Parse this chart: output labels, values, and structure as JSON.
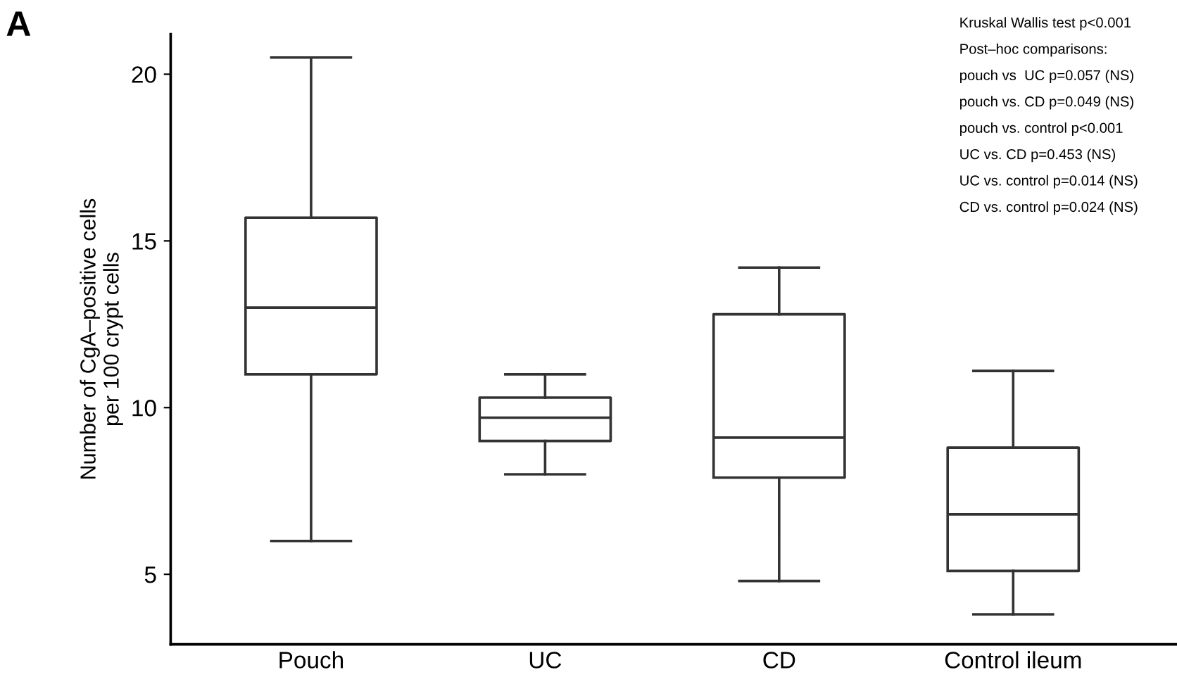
{
  "chart_data": {
    "type": "box",
    "title": "A",
    "ylabel": "Number of CgA–positive cells\nper 100 crypt cells",
    "categories": [
      "Pouch",
      "UC",
      "CD",
      "Control ileum"
    ],
    "boxes": [
      {
        "low": 6.0,
        "q1": 11.0,
        "median": 13.0,
        "q3": 15.7,
        "high": 20.5
      },
      {
        "low": 8.0,
        "q1": 9.0,
        "median": 9.7,
        "q3": 10.3,
        "high": 11.0
      },
      {
        "low": 4.8,
        "q1": 7.9,
        "median": 9.1,
        "q3": 12.8,
        "high": 14.2
      },
      {
        "low": 3.8,
        "q1": 5.1,
        "median": 6.8,
        "q3": 8.8,
        "high": 11.1
      }
    ],
    "ylim": [
      2.9,
      21.2
    ],
    "yticks": [
      5,
      10,
      15,
      20
    ],
    "grid": false,
    "annotations": [
      "Kruskal Wallis test p<0.001",
      "Post–hoc comparisons:",
      "pouch vs  UC p=0.057 (NS)",
      "pouch vs. CD p=0.049 (NS)",
      "pouch vs. control p<0.001",
      "UC vs. CD p=0.453 (NS)",
      "UC vs. control p=0.014 (NS)",
      "CD vs. control p=0.024 (NS)"
    ]
  }
}
